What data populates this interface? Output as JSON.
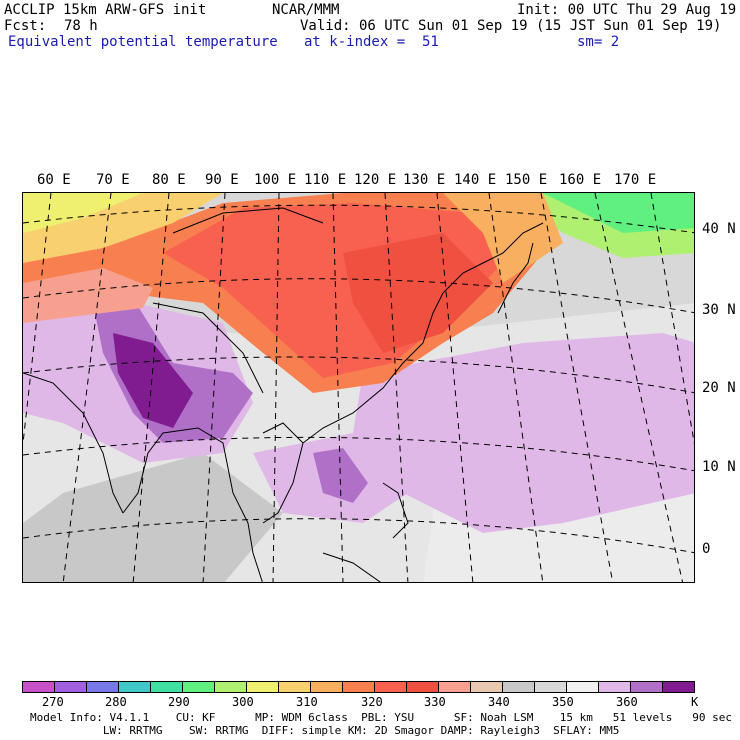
{
  "header": {
    "model": "ACCLIP 15km ARW-GFS init",
    "org": "NCAR/MMM",
    "init": "Init: 00 UTC Thu 29 Aug 19",
    "fcst_label": "Fcst:",
    "fcst_value": "78 h",
    "valid": "Valid: 06 UTC Sun 01 Sep 19 (15 JST Sun 01 Sep 19)",
    "field": "Equivalent potential temperature",
    "level": "at k-index =  51",
    "smooth": "sm= 2"
  },
  "map": {
    "lon_labels": [
      "60 E",
      "70 E",
      "80 E",
      "90 E",
      "100 E",
      "110 E",
      "120 E",
      "130 E",
      "140 E",
      "150 E",
      "160 E",
      "170 E"
    ],
    "lat_labels": [
      "40 N",
      "30 N",
      "20 N",
      "10 N",
      "0"
    ]
  },
  "colorbar": {
    "unit": "K",
    "ticks": [
      "270",
      "280",
      "290",
      "300",
      "310",
      "320",
      "330",
      "340",
      "350",
      "360"
    ],
    "colors": [
      "#c850c8",
      "#a060e0",
      "#7878e8",
      "#40c8c8",
      "#40e0a0",
      "#60f080",
      "#b0f070",
      "#f0f070",
      "#f8d070",
      "#f8b060",
      "#f88050",
      "#f86050",
      "#f05040",
      "#f8a090",
      "#e8c8b0",
      "#c8c8c8",
      "#d8d8d8",
      "#f0f0f0",
      "#e0b8e8",
      "#b070c8",
      "#801c90"
    ]
  },
  "footer": {
    "line1": "Model Info: V4.1.1    CU: KF      MP: WDM 6class  PBL: YSU      SF: Noah LSM    15 km   51 levels   90 sec",
    "line2": "           LW: RRTMG    SW: RRTMG  DIFF: simple KM: 2D Smagor DAMP: Rayleigh3  SFLAY: MM5"
  }
}
